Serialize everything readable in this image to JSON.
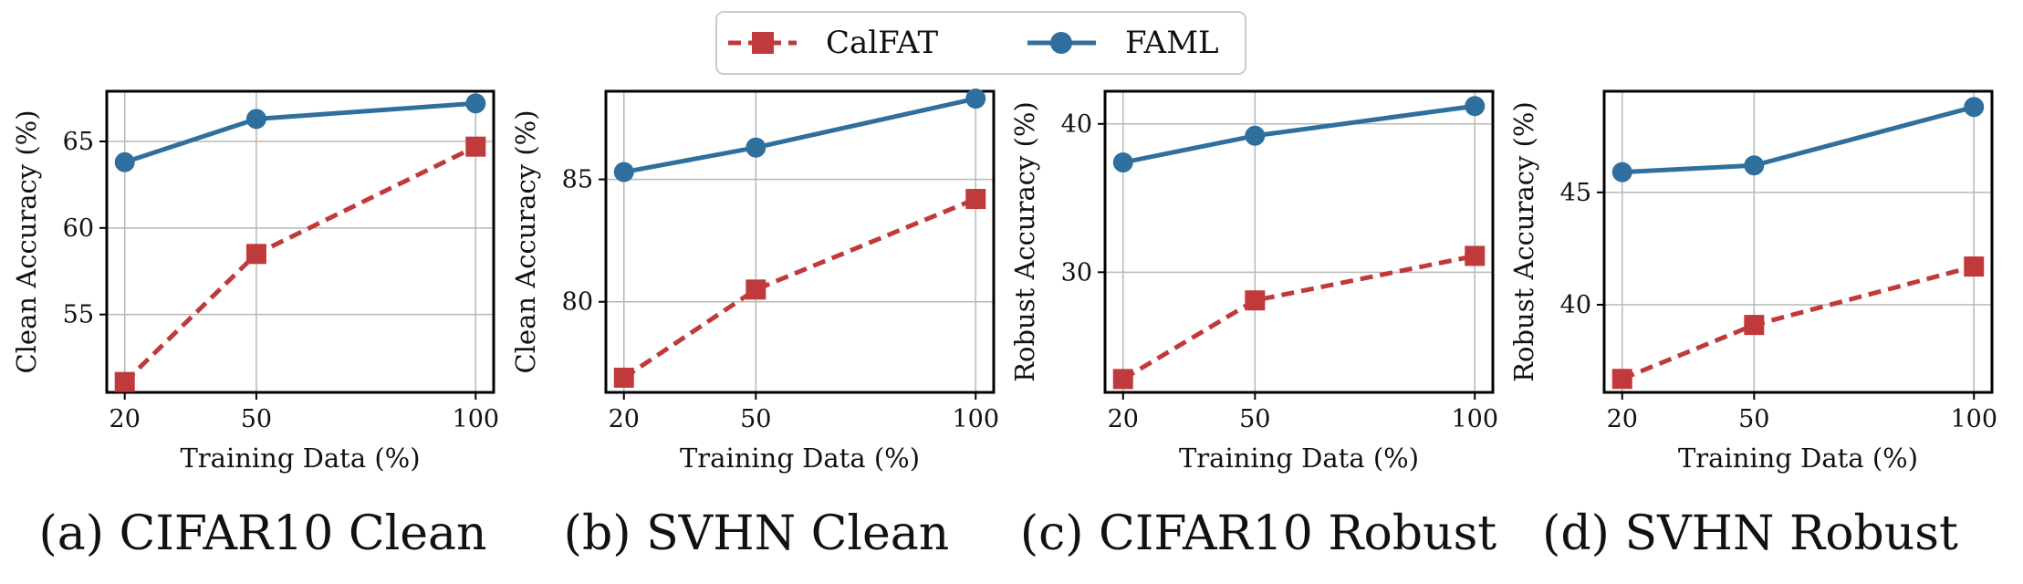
{
  "legend": {
    "calfat": "CalFAT",
    "faml": "FAML"
  },
  "colors": {
    "calfat": "#c0393b",
    "faml": "#2f6f9e",
    "grid": "#b8b8b8",
    "axis": "#000000"
  },
  "chart_data": [
    {
      "type": "line",
      "caption": "(a) CIFAR10 Clean",
      "xlabel": "Training Data (%)",
      "ylabel": "Clean Accuracy (%)",
      "x": [
        20,
        50,
        100
      ],
      "xticks": [
        "20",
        "50",
        "100"
      ],
      "yticks": [
        55,
        60,
        65
      ],
      "ylim": [
        50.5,
        67.9
      ],
      "series": [
        {
          "name": "CalFAT",
          "key": "calfat",
          "values": [
            51.1,
            58.5,
            64.7
          ]
        },
        {
          "name": "FAML",
          "key": "faml",
          "values": [
            63.8,
            66.3,
            67.2
          ]
        }
      ]
    },
    {
      "type": "line",
      "caption": "(b) SVHN Clean",
      "xlabel": "Training Data (%)",
      "ylabel": "Clean Accuracy (%)",
      "x": [
        20,
        50,
        100
      ],
      "xticks": [
        "20",
        "50",
        "100"
      ],
      "yticks": [
        80,
        85
      ],
      "ylim": [
        76.3,
        88.6
      ],
      "series": [
        {
          "name": "CalFAT",
          "key": "calfat",
          "values": [
            76.9,
            80.5,
            84.2
          ]
        },
        {
          "name": "FAML",
          "key": "faml",
          "values": [
            85.3,
            86.3,
            88.3
          ]
        }
      ]
    },
    {
      "type": "line",
      "caption": "(c) CIFAR10 Robust",
      "xlabel": "Training Data (%)",
      "ylabel": "Robust Accuracy (%)",
      "x": [
        20,
        50,
        100
      ],
      "xticks": [
        "20",
        "50",
        "100"
      ],
      "yticks": [
        30,
        40
      ],
      "ylim": [
        21.9,
        42.2
      ],
      "series": [
        {
          "name": "CalFAT",
          "key": "calfat",
          "values": [
            22.8,
            28.1,
            31.1
          ]
        },
        {
          "name": "FAML",
          "key": "faml",
          "values": [
            37.4,
            39.2,
            41.2
          ]
        }
      ]
    },
    {
      "type": "line",
      "caption": "(d) SVHN Robust",
      "xlabel": "Training Data (%)",
      "ylabel": "Robust Accuracy (%)",
      "x": [
        20,
        50,
        100
      ],
      "xticks": [
        "20",
        "50",
        "100"
      ],
      "yticks": [
        40,
        45
      ],
      "ylim": [
        36.1,
        49.5
      ],
      "series": [
        {
          "name": "CalFAT",
          "key": "calfat",
          "values": [
            36.7,
            39.1,
            41.7
          ]
        },
        {
          "name": "FAML",
          "key": "faml",
          "values": [
            45.9,
            46.2,
            48.8
          ]
        }
      ]
    }
  ]
}
